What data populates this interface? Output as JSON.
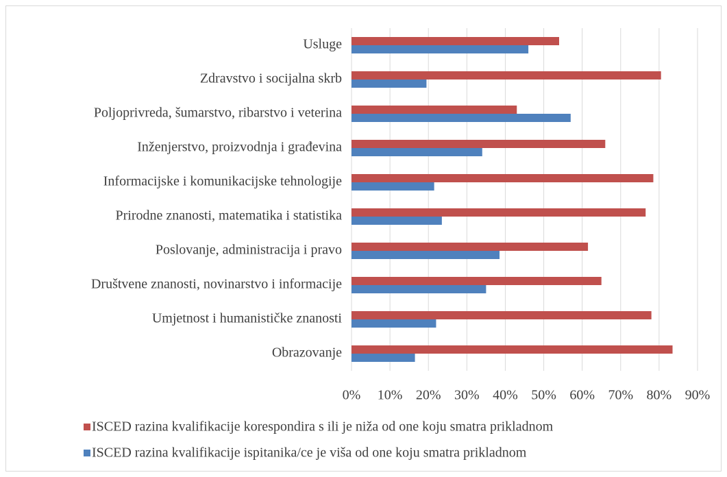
{
  "chart_data": {
    "type": "hbar",
    "categories": [
      "Usluge",
      "Zdravstvo i socijalna skrb",
      "Poljoprivreda, šumarstvo, ribarstvo i veterina",
      "Inženjerstvo, proizvodnja i građevina",
      "Informacijske i komunikacijske tehnologije",
      "Prirodne znanosti, matematika i statistika",
      "Poslovanje, administracija i pravo",
      "Društvene znanosti, novinarstvo i informacije",
      "Umjetnost i humanističke znanosti",
      "Obrazovanje"
    ],
    "series": [
      {
        "name": "ISCED razina kvalifikacije korespondira s ili je niža od one koju smatra prikladnom",
        "color": "#c0504d",
        "values": [
          54,
          80.5,
          43,
          66,
          78.5,
          76.5,
          61.5,
          65,
          78,
          83.5
        ]
      },
      {
        "name": "ISCED razina kvalifikacije ispitanika/ce je viša od one koju smatra prikladnom",
        "color": "#4f81bd",
        "values": [
          46,
          19.5,
          57,
          34,
          21.5,
          23.5,
          38.5,
          35,
          22,
          16.5
        ]
      }
    ],
    "xlim": [
      0,
      90
    ],
    "xticks": [
      {
        "value": 0,
        "label": "0%"
      },
      {
        "value": 10,
        "label": "10%"
      },
      {
        "value": 20,
        "label": "20%"
      },
      {
        "value": 30,
        "label": "30%"
      },
      {
        "value": 40,
        "label": "40%"
      },
      {
        "value": 50,
        "label": "50%"
      },
      {
        "value": 60,
        "label": "60%"
      },
      {
        "value": 70,
        "label": "70%"
      },
      {
        "value": 80,
        "label": "80%"
      },
      {
        "value": 90,
        "label": "90%"
      }
    ],
    "grid": true
  }
}
